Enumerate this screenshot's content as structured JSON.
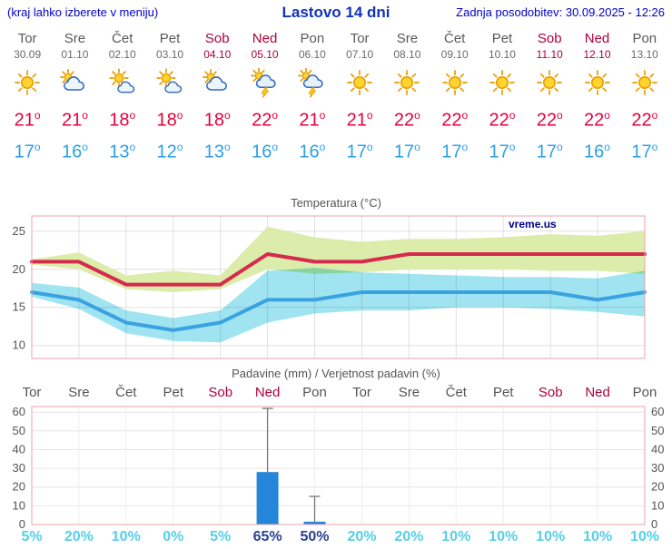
{
  "header": {
    "left_note": "(kraj lahko izberete v meniju)",
    "title": "Lastovo 14 dni",
    "updated": "Zadnja posodobitev: 30.09.2025 - 12:26"
  },
  "units": {
    "degree_symbol": "o"
  },
  "days": [
    {
      "name": "Tor",
      "date": "30.09",
      "weekend": false,
      "icon": "sun",
      "tmax": "21",
      "tmin": "17"
    },
    {
      "name": "Sre",
      "date": "01.10",
      "weekend": false,
      "icon": "mostly-cloudy",
      "tmax": "21",
      "tmin": "16"
    },
    {
      "name": "Čet",
      "date": "02.10",
      "weekend": false,
      "icon": "partly-cloudy",
      "tmax": "18",
      "tmin": "13"
    },
    {
      "name": "Pet",
      "date": "03.10",
      "weekend": false,
      "icon": "partly-cloudy",
      "tmax": "18",
      "tmin": "12"
    },
    {
      "name": "Sob",
      "date": "04.10",
      "weekend": true,
      "icon": "mostly-cloudy",
      "tmax": "18",
      "tmin": "13"
    },
    {
      "name": "Ned",
      "date": "05.10",
      "weekend": true,
      "icon": "thunderstorm",
      "tmax": "22",
      "tmin": "16"
    },
    {
      "name": "Pon",
      "date": "06.10",
      "weekend": false,
      "icon": "thunderstorm",
      "tmax": "21",
      "tmin": "16"
    },
    {
      "name": "Tor",
      "date": "07.10",
      "weekend": false,
      "icon": "sun",
      "tmax": "21",
      "tmin": "17"
    },
    {
      "name": "Sre",
      "date": "08.10",
      "weekend": false,
      "icon": "sun",
      "tmax": "22",
      "tmin": "17"
    },
    {
      "name": "Čet",
      "date": "09.10",
      "weekend": false,
      "icon": "sun",
      "tmax": "22",
      "tmin": "17"
    },
    {
      "name": "Pet",
      "date": "10.10",
      "weekend": false,
      "icon": "sun",
      "tmax": "22",
      "tmin": "17"
    },
    {
      "name": "Sob",
      "date": "11.10",
      "weekend": true,
      "icon": "sun",
      "tmax": "22",
      "tmin": "17"
    },
    {
      "name": "Ned",
      "date": "12.10",
      "weekend": true,
      "icon": "sun",
      "tmax": "22",
      "tmin": "16"
    },
    {
      "name": "Pon",
      "date": "13.10",
      "weekend": false,
      "icon": "sun",
      "tmax": "22",
      "tmin": "17"
    }
  ],
  "colors": {
    "header_blue": "#0000cc",
    "tmax_red": "#e4003c",
    "tmin_blue": "#2f9fe8",
    "weekend_red": "#b00038",
    "weekday_gray": "#595959",
    "frame_pink": "#f2a0aa",
    "grid_gray": "#e0e0e0",
    "bar_blue": "#2585d8",
    "prob_cyan": "#55d0e8",
    "prob_navy": "#2b3f93",
    "watermark_navy": "#00008b"
  },
  "chart_data": [
    {
      "type": "line",
      "title": "Temperatura (°C)",
      "watermark": "vreme.us",
      "categories": [
        "Tor",
        "Sre",
        "Čet",
        "Pet",
        "Sob",
        "Ned",
        "Pon",
        "Tor",
        "Sre",
        "Čet",
        "Pet",
        "Sob",
        "Ned",
        "Pon"
      ],
      "ylim": [
        8.3,
        27
      ],
      "yticks": [
        10,
        15,
        20,
        25
      ],
      "grid": true,
      "legend_position": "none",
      "series": [
        {
          "name": "tmax",
          "color": "#d62a4e",
          "values": [
            21,
            21,
            18,
            18,
            18,
            22,
            21,
            21,
            22,
            22,
            22,
            22,
            22,
            22
          ]
        },
        {
          "name": "tmin",
          "color": "#3aa2e0",
          "values": [
            17,
            16,
            13,
            12,
            13,
            16,
            16,
            17,
            17,
            17,
            17,
            17,
            16,
            17
          ]
        }
      ],
      "bands": [
        {
          "name": "tmax-range",
          "color": "#dcecaa",
          "upper": [
            21.3,
            22.2,
            19.2,
            19.8,
            19.2,
            25.6,
            24.2,
            23.6,
            24,
            24,
            24.2,
            24.6,
            24.4,
            25
          ],
          "lower": [
            20.6,
            20,
            17.4,
            17,
            17.4,
            20,
            19.4,
            19.6,
            20,
            20,
            20,
            19.8,
            19.8,
            19.4
          ]
        },
        {
          "name": "tmin-range",
          "color": "#8fe0f0",
          "upper": [
            18.2,
            17.6,
            14.6,
            13.6,
            14.6,
            19.8,
            20.2,
            19.6,
            19.4,
            19.2,
            19,
            19,
            18.8,
            19.8
          ],
          "lower": [
            16.4,
            14.8,
            11.6,
            10.6,
            10.4,
            13,
            14.2,
            14.6,
            14.6,
            15,
            15,
            14.8,
            14.4,
            13.8
          ]
        }
      ]
    },
    {
      "type": "bar",
      "title": "Padavine (mm) / Verjetnost padavin (%)",
      "categories": [
        "Tor",
        "Sre",
        "Čet",
        "Pet",
        "Sob",
        "Ned",
        "Pon",
        "Tor",
        "Sre",
        "Čet",
        "Pet",
        "Sob",
        "Ned",
        "Pon"
      ],
      "weekend": [
        false,
        false,
        false,
        false,
        true,
        true,
        false,
        false,
        false,
        false,
        false,
        true,
        true,
        false
      ],
      "ylim": [
        0,
        63
      ],
      "yticks": [
        0,
        10,
        20,
        30,
        40,
        50,
        60
      ],
      "grid": true,
      "values": [
        0,
        0,
        0,
        0,
        0,
        28,
        1.5,
        0,
        0,
        0,
        0,
        0,
        0,
        0
      ],
      "whisker_high": [
        0,
        0,
        0,
        0,
        0,
        62,
        15,
        0,
        0,
        0,
        0,
        0,
        0,
        0
      ],
      "probabilities": [
        "5%",
        "20%",
        "10%",
        "0%",
        "5%",
        "65%",
        "50%",
        "20%",
        "20%",
        "10%",
        "10%",
        "10%",
        "10%",
        "10%"
      ],
      "prob_highlight": [
        false,
        false,
        false,
        false,
        false,
        true,
        true,
        false,
        false,
        false,
        false,
        false,
        false,
        false
      ]
    }
  ]
}
